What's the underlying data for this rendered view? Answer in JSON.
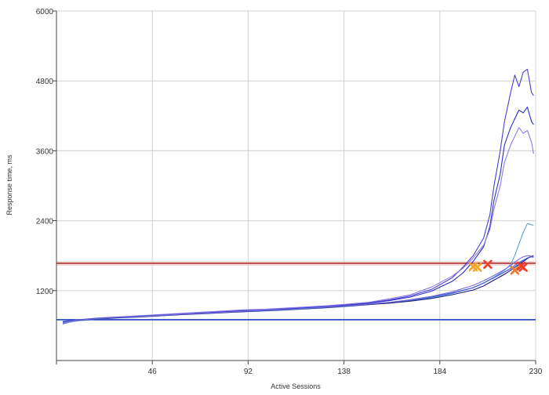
{
  "chart_data": {
    "type": "line",
    "title": "",
    "xlabel": "Active Sessions",
    "ylabel": "Response time, ms",
    "xlim": [
      0,
      230
    ],
    "ylim": [
      0,
      6000
    ],
    "x_ticks": [
      46,
      92,
      138,
      184,
      230
    ],
    "x_tick_labels": [
      "46",
      "92",
      "138",
      "184",
      "230"
    ],
    "y_ticks": [
      1200,
      2400,
      3600,
      4800,
      6000
    ],
    "y_tick_labels": [
      "1200",
      "2400",
      "3600",
      "4800",
      "6000"
    ],
    "grid": true,
    "legend": "none",
    "reference_lines": [
      {
        "y": 1670,
        "color": "#b22222"
      },
      {
        "y": 700,
        "color": "#1f3fbf"
      }
    ],
    "series": [
      {
        "color": "#4b3fd0",
        "x": [
          3,
          10,
          20,
          30,
          40,
          50,
          60,
          70,
          80,
          90,
          100,
          110,
          120,
          130,
          140,
          150,
          160,
          170,
          180,
          190,
          195,
          200,
          205,
          208,
          210,
          213,
          215,
          218,
          220,
          222,
          224,
          226,
          228,
          229
        ],
        "y": [
          630,
          690,
          720,
          745,
          760,
          780,
          800,
          820,
          840,
          860,
          870,
          890,
          910,
          930,
          960,
          990,
          1040,
          1110,
          1220,
          1420,
          1600,
          1800,
          2100,
          2500,
          3000,
          3600,
          4100,
          4600,
          4900,
          4700,
          4950,
          5000,
          4600,
          4550
        ]
      },
      {
        "color": "#2a2fc8",
        "x": [
          3,
          10,
          20,
          30,
          40,
          50,
          60,
          70,
          80,
          90,
          100,
          110,
          120,
          130,
          140,
          150,
          160,
          170,
          180,
          190,
          195,
          200,
          205,
          208,
          210,
          213,
          215,
          218,
          220,
          222,
          224,
          226,
          228,
          229
        ],
        "y": [
          640,
          685,
          715,
          740,
          755,
          775,
          795,
          815,
          835,
          855,
          865,
          885,
          905,
          925,
          955,
          985,
          1030,
          1090,
          1190,
          1360,
          1500,
          1700,
          1950,
          2300,
          2750,
          3200,
          3700,
          4000,
          4150,
          4300,
          4250,
          4350,
          4100,
          4050
        ]
      },
      {
        "color": "#8a78e8",
        "x": [
          3,
          10,
          20,
          30,
          40,
          50,
          60,
          70,
          80,
          90,
          100,
          110,
          120,
          130,
          140,
          150,
          160,
          170,
          180,
          190,
          195,
          200,
          205,
          208,
          210,
          213,
          215,
          218,
          220,
          222,
          224,
          226,
          228,
          229
        ],
        "y": [
          650,
          700,
          730,
          750,
          770,
          790,
          810,
          830,
          850,
          870,
          880,
          900,
          920,
          940,
          970,
          1000,
          1060,
          1130,
          1260,
          1450,
          1580,
          1760,
          1980,
          2250,
          2600,
          3000,
          3400,
          3700,
          3850,
          4000,
          3900,
          3950,
          3750,
          3550
        ]
      },
      {
        "color": "#5aa0e0",
        "x": [
          3,
          10,
          20,
          30,
          40,
          50,
          60,
          70,
          80,
          90,
          100,
          110,
          120,
          130,
          140,
          150,
          160,
          170,
          180,
          190,
          200,
          205,
          210,
          215,
          218,
          220,
          222,
          224,
          226,
          228,
          229
        ],
        "y": [
          640,
          680,
          710,
          730,
          745,
          765,
          785,
          800,
          820,
          835,
          850,
          865,
          885,
          905,
          930,
          960,
          990,
          1030,
          1080,
          1150,
          1250,
          1330,
          1430,
          1550,
          1650,
          1800,
          2000,
          2200,
          2350,
          2330,
          2320
        ]
      },
      {
        "color": "#1a1a7a",
        "x": [
          3,
          10,
          20,
          30,
          40,
          50,
          60,
          70,
          80,
          90,
          100,
          110,
          120,
          130,
          140,
          150,
          160,
          170,
          180,
          190,
          200,
          205,
          210,
          215,
          218,
          220,
          222,
          224,
          226,
          228,
          229
        ],
        "y": [
          660,
          690,
          715,
          735,
          750,
          770,
          790,
          805,
          820,
          840,
          855,
          870,
          890,
          910,
          935,
          960,
          985,
          1020,
          1065,
          1130,
          1210,
          1280,
          1380,
          1480,
          1550,
          1600,
          1650,
          1700,
          1750,
          1790,
          1800
        ]
      },
      {
        "color": "#3a4fd8",
        "x": [
          3,
          10,
          20,
          30,
          40,
          50,
          60,
          70,
          80,
          90,
          100,
          110,
          120,
          130,
          140,
          150,
          160,
          170,
          180,
          190,
          200,
          205,
          210,
          215,
          218,
          220,
          222,
          224,
          226,
          228,
          229
        ],
        "y": [
          670,
          700,
          725,
          745,
          760,
          780,
          800,
          815,
          830,
          850,
          865,
          880,
          900,
          920,
          945,
          970,
          1000,
          1040,
          1090,
          1160,
          1250,
          1330,
          1420,
          1520,
          1580,
          1630,
          1680,
          1720,
          1760,
          1780,
          1770
        ]
      },
      {
        "color": "#7a6ad8",
        "x": [
          3,
          10,
          20,
          30,
          40,
          50,
          60,
          70,
          80,
          90,
          100,
          110,
          120,
          130,
          140,
          150,
          160,
          170,
          180,
          190,
          200,
          205,
          210,
          215,
          218,
          220,
          222,
          224,
          226,
          228,
          229
        ],
        "y": [
          650,
          695,
          720,
          740,
          755,
          775,
          795,
          810,
          828,
          845,
          860,
          875,
          895,
          915,
          940,
          968,
          1000,
          1045,
          1100,
          1180,
          1290,
          1370,
          1460,
          1560,
          1630,
          1690,
          1740,
          1780,
          1800,
          1790,
          1780
        ]
      }
    ],
    "markers": [
      {
        "x": 200,
        "y": 1610,
        "color": "#f5a623",
        "shape": "x"
      },
      {
        "x": 202,
        "y": 1600,
        "color": "#f5a623",
        "shape": "x"
      },
      {
        "x": 207,
        "y": 1650,
        "color": "#e8402a",
        "shape": "x"
      },
      {
        "x": 220,
        "y": 1550,
        "color": "#f07a2a",
        "shape": "x"
      },
      {
        "x": 223,
        "y": 1620,
        "color": "#e8402a",
        "shape": "x"
      },
      {
        "x": 224,
        "y": 1600,
        "color": "#e8402a",
        "shape": "x"
      }
    ]
  }
}
